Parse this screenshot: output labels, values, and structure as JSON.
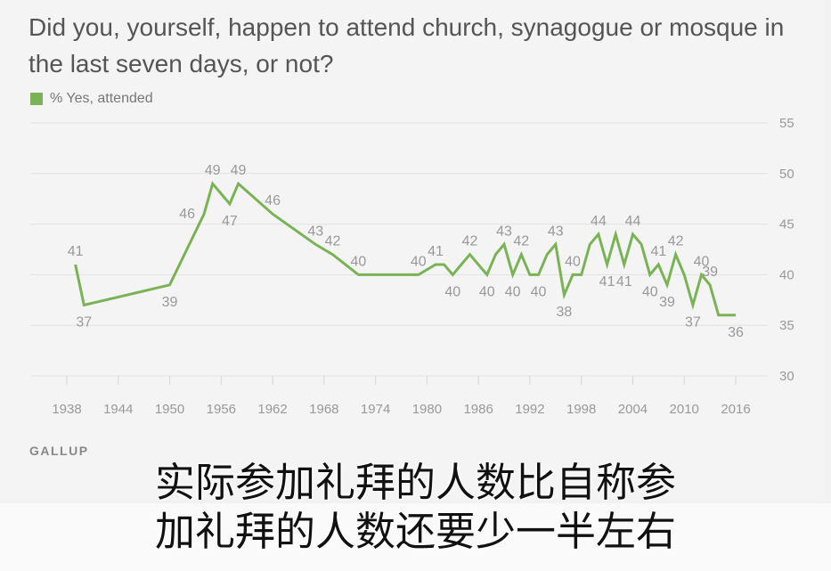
{
  "page": {
    "title": "Did you, yourself, happen to attend church, synagogue or mosque in the last seven days, or not?",
    "source": "GALLUP",
    "caption_lines": [
      "实际参加礼拜的人数比自称参",
      "加礼拜的人数还要少一半左右"
    ]
  },
  "colors": {
    "series": "#7ab356",
    "grid": "#e2e2e2",
    "axis_text": "#999999"
  },
  "chart_data": {
    "type": "line",
    "title": "Did you, yourself, happen to attend church, synagogue or mosque in the last seven days, or not?",
    "legend_position": "top-left",
    "grid": true,
    "xlim": [
      1938,
      2016
    ],
    "ylim": [
      30,
      55
    ],
    "x_ticks": [
      1938,
      1944,
      1950,
      1956,
      1962,
      1968,
      1974,
      1980,
      1986,
      1992,
      1998,
      2004,
      2010,
      2016
    ],
    "y_ticks": [
      30,
      35,
      40,
      45,
      50,
      55
    ],
    "series": [
      {
        "name": "% Yes, attended",
        "x": [
          1939,
          1940,
          1950,
          1954,
          1955,
          1957,
          1958,
          1962,
          1967,
          1969,
          1972,
          1979,
          1981,
          1982,
          1983,
          1985,
          1987,
          1988,
          1989,
          1990,
          1991,
          1992,
          1993,
          1994,
          1995,
          1996,
          1997,
          1998,
          1999,
          2000,
          2001,
          2002,
          2003,
          2004,
          2005,
          2006,
          2007,
          2008,
          2009,
          2010,
          2011,
          2012,
          2013,
          2014,
          2015,
          2016
        ],
        "values": [
          41,
          37,
          39,
          46,
          49,
          47,
          49,
          46,
          43,
          42,
          40,
          40,
          41,
          41,
          40,
          42,
          40,
          42,
          43,
          40,
          42,
          40,
          40,
          42,
          43,
          38,
          40,
          40,
          43,
          44,
          41,
          44,
          41,
          44,
          43,
          40,
          41,
          39,
          42,
          40,
          37,
          40,
          39,
          36,
          36,
          36
        ]
      }
    ],
    "point_labels": [
      {
        "x": 1939,
        "y": 41,
        "text": "41",
        "pos": "above"
      },
      {
        "x": 1940,
        "y": 37,
        "text": "37",
        "pos": "below"
      },
      {
        "x": 1950,
        "y": 39,
        "text": "39",
        "pos": "below"
      },
      {
        "x": 1954,
        "y": 46,
        "text": "46",
        "pos": "left"
      },
      {
        "x": 1955,
        "y": 49,
        "text": "49",
        "pos": "above"
      },
      {
        "x": 1957,
        "y": 47,
        "text": "47",
        "pos": "below"
      },
      {
        "x": 1958,
        "y": 49,
        "text": "49",
        "pos": "above"
      },
      {
        "x": 1962,
        "y": 46,
        "text": "46",
        "pos": "above"
      },
      {
        "x": 1967,
        "y": 43,
        "text": "43",
        "pos": "above"
      },
      {
        "x": 1969,
        "y": 42,
        "text": "42",
        "pos": "above"
      },
      {
        "x": 1972,
        "y": 40,
        "text": "40",
        "pos": "above"
      },
      {
        "x": 1979,
        "y": 40,
        "text": "40",
        "pos": "above"
      },
      {
        "x": 1981,
        "y": 41,
        "text": "41",
        "pos": "above"
      },
      {
        "x": 1983,
        "y": 40,
        "text": "40",
        "pos": "below"
      },
      {
        "x": 1985,
        "y": 42,
        "text": "42",
        "pos": "above"
      },
      {
        "x": 1987,
        "y": 40,
        "text": "40",
        "pos": "below"
      },
      {
        "x": 1989,
        "y": 43,
        "text": "43",
        "pos": "above"
      },
      {
        "x": 1990,
        "y": 40,
        "text": "40",
        "pos": "below"
      },
      {
        "x": 1991,
        "y": 42,
        "text": "42",
        "pos": "above"
      },
      {
        "x": 1993,
        "y": 40,
        "text": "40",
        "pos": "below"
      },
      {
        "x": 1995,
        "y": 43,
        "text": "43",
        "pos": "above"
      },
      {
        "x": 1996,
        "y": 38,
        "text": "38",
        "pos": "below"
      },
      {
        "x": 1997,
        "y": 40,
        "text": "40",
        "pos": "above"
      },
      {
        "x": 2000,
        "y": 44,
        "text": "44",
        "pos": "above"
      },
      {
        "x": 2001,
        "y": 41,
        "text": "41",
        "pos": "below"
      },
      {
        "x": 2003,
        "y": 41,
        "text": "41",
        "pos": "below"
      },
      {
        "x": 2004,
        "y": 44,
        "text": "44",
        "pos": "above"
      },
      {
        "x": 2006,
        "y": 40,
        "text": "40",
        "pos": "below"
      },
      {
        "x": 2007,
        "y": 41,
        "text": "41",
        "pos": "above"
      },
      {
        "x": 2008,
        "y": 39,
        "text": "39",
        "pos": "below"
      },
      {
        "x": 2009,
        "y": 42,
        "text": "42",
        "pos": "above"
      },
      {
        "x": 2011,
        "y": 37,
        "text": "37",
        "pos": "below"
      },
      {
        "x": 2012,
        "y": 40,
        "text": "40",
        "pos": "above"
      },
      {
        "x": 2013,
        "y": 39,
        "text": "39",
        "pos": "above"
      },
      {
        "x": 2016,
        "y": 36,
        "text": "36",
        "pos": "below"
      }
    ]
  }
}
